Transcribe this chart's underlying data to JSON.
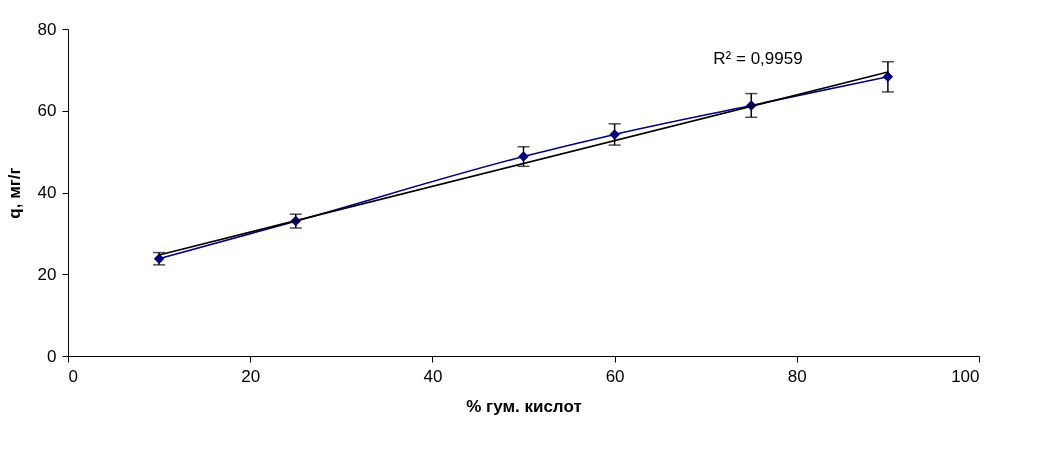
{
  "chart_data": {
    "type": "line",
    "xlabel": "% гум. кислот",
    "ylabel": "q, мг/г",
    "xlim": [
      0,
      100
    ],
    "xticks": [
      0,
      20,
      40,
      60,
      80,
      100
    ],
    "ylim": [
      0,
      80
    ],
    "yticks": [
      0,
      20,
      40,
      60,
      80
    ],
    "grid": false,
    "series": [
      {
        "color": "#000080",
        "marker": "diamond",
        "x": [
          10,
          25,
          50,
          60,
          75,
          90
        ],
        "values": [
          23.8,
          33.0,
          48.8,
          54.2,
          61.3,
          68.3
        ],
        "errors": [
          1.5,
          1.7,
          2.4,
          2.6,
          2.9,
          3.7
        ]
      },
      {
        "color": "#000000",
        "marker": "none",
        "x": [
          10,
          90
        ],
        "values": [
          24.7,
          69.5
        ]
      }
    ],
    "annotations": [
      "R² = 0,9959"
    ]
  }
}
